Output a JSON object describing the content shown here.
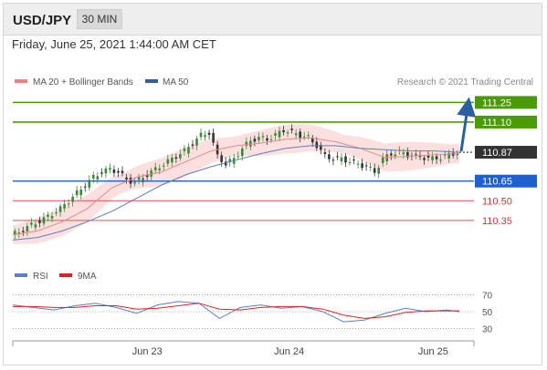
{
  "header": {
    "pair": "USD/JPY",
    "timeframe": "30 MIN"
  },
  "date_line": "Friday, June 25, 2021 1:44:00 AM CET",
  "legend": [
    {
      "label": "MA 20 + Bollinger Bands",
      "color": "#f08080"
    },
    {
      "label": "MA 50",
      "color": "#2b5fa0"
    }
  ],
  "copyright": "Research © 2021 Trading Central",
  "rsi_legend": [
    {
      "label": "RSI",
      "color": "#5b7fcf"
    },
    {
      "label": "9MA",
      "color": "#e02020"
    }
  ],
  "chart_data": {
    "type": "candlestick",
    "title": "USD/JPY",
    "price_range": [
      110.21,
      111.35
    ],
    "current_price": "110.87",
    "levels": [
      {
        "label": "111.25",
        "value": 111.25,
        "kind": "resistance",
        "color": "#4a9a0a"
      },
      {
        "label": "111.10",
        "value": 111.1,
        "kind": "resistance",
        "color": "#4a9a0a"
      },
      {
        "label": "110.65",
        "value": 110.65,
        "kind": "pivot",
        "color": "#1f5fcf"
      },
      {
        "label": "110.50",
        "value": 110.5,
        "kind": "support",
        "color": "#e05050"
      },
      {
        "label": "110.35",
        "value": 110.35,
        "kind": "support",
        "color": "#e05050"
      }
    ],
    "target_arrow": {
      "from": 110.87,
      "to": 111.25
    },
    "x_ticks": [
      {
        "label": "Jun 23",
        "t": 0.29
      },
      {
        "label": "Jun 24",
        "t": 0.6
      },
      {
        "label": "Jun 25",
        "t": 0.915
      }
    ],
    "series_trend": [
      [
        0,
        110.24
      ],
      [
        4,
        110.26
      ],
      [
        8,
        110.3
      ],
      [
        12,
        110.33
      ],
      [
        16,
        110.36
      ],
      [
        20,
        110.4
      ],
      [
        24,
        110.44
      ],
      [
        28,
        110.5
      ],
      [
        32,
        110.56
      ],
      [
        36,
        110.62
      ],
      [
        40,
        110.68
      ],
      [
        44,
        110.72
      ],
      [
        48,
        110.74
      ],
      [
        52,
        110.72
      ],
      [
        56,
        110.66
      ],
      [
        60,
        110.64
      ],
      [
        64,
        110.68
      ],
      [
        68,
        110.72
      ],
      [
        72,
        110.76
      ],
      [
        76,
        110.8
      ],
      [
        80,
        110.84
      ],
      [
        84,
        110.88
      ],
      [
        88,
        110.94
      ],
      [
        92,
        111.0
      ],
      [
        96,
        111.02
      ],
      [
        100,
        110.84
      ],
      [
        104,
        110.78
      ],
      [
        108,
        110.82
      ],
      [
        112,
        110.9
      ],
      [
        116,
        110.96
      ],
      [
        120,
        110.98
      ],
      [
        124,
        110.97
      ],
      [
        128,
        111.0
      ],
      [
        132,
        111.04
      ],
      [
        136,
        111.02
      ],
      [
        140,
        111.0
      ],
      [
        144,
        110.98
      ],
      [
        148,
        110.92
      ],
      [
        152,
        110.84
      ],
      [
        156,
        110.82
      ],
      [
        160,
        110.82
      ],
      [
        164,
        110.8
      ],
      [
        168,
        110.78
      ],
      [
        172,
        110.76
      ],
      [
        176,
        110.72
      ],
      [
        180,
        110.82
      ],
      [
        184,
        110.86
      ],
      [
        188,
        110.87
      ],
      [
        192,
        110.85
      ],
      [
        196,
        110.84
      ],
      [
        200,
        110.83
      ],
      [
        204,
        110.82
      ],
      [
        208,
        110.83
      ],
      [
        212,
        110.85
      ],
      [
        216,
        110.87
      ]
    ],
    "ma20": [
      [
        0,
        110.24
      ],
      [
        12,
        110.27
      ],
      [
        24,
        110.34
      ],
      [
        36,
        110.44
      ],
      [
        48,
        110.6
      ],
      [
        60,
        110.68
      ],
      [
        72,
        110.72
      ],
      [
        84,
        110.8
      ],
      [
        96,
        110.88
      ],
      [
        108,
        110.92
      ],
      [
        120,
        110.94
      ],
      [
        132,
        110.97
      ],
      [
        144,
        110.98
      ],
      [
        156,
        110.95
      ],
      [
        168,
        110.9
      ],
      [
        180,
        110.83
      ],
      [
        192,
        110.84
      ],
      [
        204,
        110.85
      ],
      [
        216,
        110.86
      ]
    ],
    "ma50": [
      [
        0,
        110.2
      ],
      [
        12,
        110.22
      ],
      [
        24,
        110.27
      ],
      [
        36,
        110.34
      ],
      [
        48,
        110.42
      ],
      [
        60,
        110.52
      ],
      [
        72,
        110.62
      ],
      [
        84,
        110.7
      ],
      [
        96,
        110.76
      ],
      [
        108,
        110.81
      ],
      [
        120,
        110.86
      ],
      [
        132,
        110.9
      ],
      [
        144,
        110.92
      ],
      [
        156,
        110.92
      ],
      [
        168,
        110.9
      ],
      [
        180,
        110.89
      ],
      [
        192,
        110.88
      ],
      [
        204,
        110.88
      ],
      [
        216,
        110.87
      ]
    ],
    "rsi": {
      "levels": [
        70,
        50,
        30
      ],
      "range": [
        22,
        78
      ],
      "rsi_points": [
        [
          0,
          58
        ],
        [
          10,
          55
        ],
        [
          20,
          52
        ],
        [
          30,
          57
        ],
        [
          40,
          60
        ],
        [
          50,
          55
        ],
        [
          60,
          48
        ],
        [
          70,
          58
        ],
        [
          80,
          62
        ],
        [
          90,
          60
        ],
        [
          100,
          42
        ],
        [
          110,
          55
        ],
        [
          120,
          58
        ],
        [
          130,
          54
        ],
        [
          140,
          56
        ],
        [
          150,
          50
        ],
        [
          160,
          38
        ],
        [
          170,
          40
        ],
        [
          180,
          48
        ],
        [
          190,
          54
        ],
        [
          200,
          50
        ],
        [
          210,
          52
        ],
        [
          216,
          50
        ]
      ],
      "ma_points": [
        [
          0,
          56
        ],
        [
          10,
          56
        ],
        [
          20,
          55
        ],
        [
          30,
          55
        ],
        [
          40,
          57
        ],
        [
          50,
          57
        ],
        [
          60,
          53
        ],
        [
          70,
          54
        ],
        [
          80,
          57
        ],
        [
          90,
          60
        ],
        [
          100,
          53
        ],
        [
          110,
          52
        ],
        [
          120,
          55
        ],
        [
          130,
          56
        ],
        [
          140,
          56
        ],
        [
          150,
          53
        ],
        [
          160,
          46
        ],
        [
          170,
          42
        ],
        [
          180,
          44
        ],
        [
          190,
          49
        ],
        [
          200,
          51
        ],
        [
          210,
          51
        ],
        [
          216,
          51
        ]
      ]
    }
  }
}
